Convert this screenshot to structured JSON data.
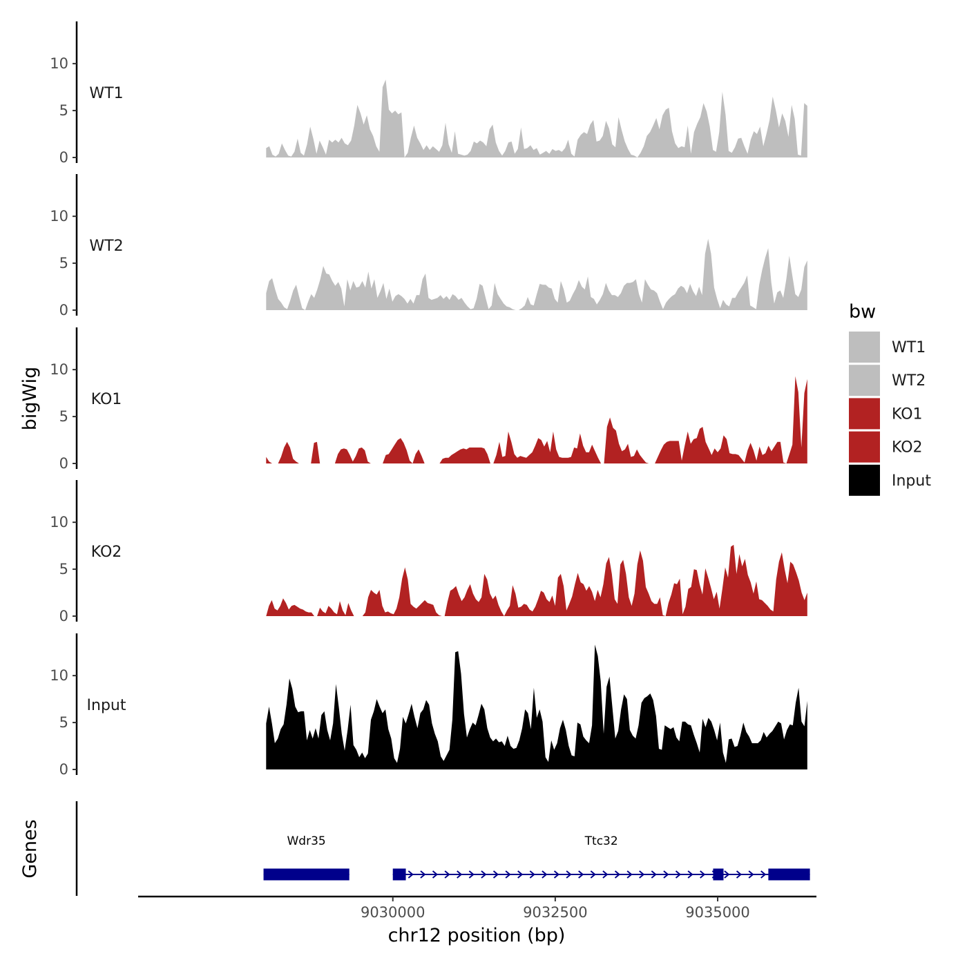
{
  "chart_data": {
    "type": "area",
    "xlabel": "chr12 position (bp)",
    "ylabel": "bigWig",
    "genes_label": "Genes",
    "xlim": [
      9026080,
      9036520
    ],
    "x_ticks": [
      9030000,
      9032500,
      9035000
    ],
    "x_tick_labels": [
      "9030000",
      "9032500",
      "9035000"
    ],
    "ylim": [
      0,
      14.5
    ],
    "y_ticks": [
      0,
      5,
      10
    ],
    "y_tick_labels": [
      "0",
      "5",
      "10"
    ],
    "x_range": [
      9028050,
      9036380
    ],
    "legend": {
      "title": "bw",
      "entries": [
        {
          "label": "WT1",
          "color": "#BEBEBE"
        },
        {
          "label": "WT2",
          "color": "#BEBEBE"
        },
        {
          "label": "KO1",
          "color": "#B22222"
        },
        {
          "label": "KO2",
          "color": "#B22222"
        },
        {
          "label": "Input",
          "color": "#000000"
        }
      ]
    },
    "series": [
      {
        "name": "WT1",
        "color": "#BEBEBE",
        "values": [
          1.0,
          1.2,
          0.3,
          0.1,
          0.4,
          1.5,
          0.8,
          0.2,
          0.1,
          0.6,
          2.0,
          0.5,
          0.2,
          1.4,
          3.3,
          2.0,
          0.4,
          1.8,
          1.1,
          0.3,
          1.9,
          1.6,
          1.9,
          1.6,
          2.1,
          1.5,
          1.3,
          1.8,
          3.4,
          5.6,
          4.7,
          3.5,
          4.5,
          3.0,
          2.3,
          1.2,
          0.6,
          7.5,
          8.3,
          5.1,
          4.7,
          5.0,
          4.6,
          4.8,
          0.0,
          0.5,
          2.1,
          3.4,
          2.1,
          1.5,
          0.8,
          1.3,
          0.8,
          1.2,
          0.9,
          0.6,
          1.3,
          3.7,
          1.4,
          0.5,
          2.8,
          0.4,
          0.3,
          0.2,
          0.3,
          0.7,
          1.7,
          1.5,
          1.8,
          1.6,
          1.2,
          3.0,
          3.5,
          1.6,
          0.7,
          0.2,
          0.7,
          1.6,
          1.7,
          0.4,
          0.9,
          3.2,
          0.9,
          1.0,
          1.3,
          0.8,
          1.0,
          0.3,
          0.5,
          0.7,
          0.4,
          0.9,
          0.7,
          0.8,
          0.6,
          1.0,
          1.9,
          0.4,
          0.1,
          1.9,
          2.4,
          2.7,
          2.5,
          3.5,
          4.0,
          1.7,
          1.8,
          2.3,
          3.9,
          3.1,
          1.4,
          1.1,
          4.3,
          2.9,
          1.7,
          0.9,
          0.3,
          0.2,
          0.0,
          0.5,
          1.2,
          2.3,
          2.7,
          3.4,
          4.2,
          3.0,
          4.5,
          5.1,
          5.3,
          2.8,
          1.5,
          1.0,
          1.2,
          1.1,
          3.4,
          0.4,
          2.7,
          3.6,
          4.3,
          5.8,
          4.9,
          3.3,
          0.8,
          0.6,
          2.7,
          7.0,
          4.6,
          0.7,
          0.5,
          1.1,
          2.0,
          2.1,
          1.2,
          0.4,
          1.9,
          2.8,
          2.5,
          3.3,
          1.2,
          2.5,
          4.0,
          6.5,
          5.0,
          3.2,
          4.7,
          3.9,
          2.2,
          5.6,
          4.1,
          0.3,
          0.2,
          5.8,
          5.5
        ]
      },
      {
        "name": "WT2",
        "color": "#BEBEBE",
        "values": [
          1.8,
          3.1,
          3.4,
          2.2,
          1.2,
          0.8,
          0.3,
          0.1,
          1.0,
          2.1,
          2.7,
          1.4,
          0.2,
          0.0,
          0.9,
          1.7,
          1.3,
          2.2,
          3.3,
          4.7,
          3.9,
          3.8,
          3.1,
          2.6,
          3.0,
          2.3,
          0.4,
          3.3,
          2.1,
          3.1,
          2.4,
          2.5,
          3.1,
          2.4,
          4.1,
          2.3,
          3.3,
          1.3,
          2.0,
          2.9,
          1.2,
          2.3,
          0.9,
          1.5,
          1.7,
          1.5,
          1.2,
          0.7,
          1.2,
          0.7,
          1.6,
          1.6,
          3.3,
          3.9,
          1.3,
          1.1,
          1.2,
          1.3,
          1.6,
          1.2,
          1.5,
          1.1,
          1.7,
          1.5,
          1.1,
          1.3,
          0.8,
          0.4,
          0.1,
          0.2,
          1.2,
          2.8,
          2.6,
          1.3,
          0.1,
          0.5,
          2.9,
          1.7,
          1.2,
          0.7,
          0.4,
          0.3,
          0.1,
          0.0,
          0.0,
          0.2,
          0.5,
          1.4,
          0.6,
          0.5,
          1.7,
          2.8,
          2.7,
          2.7,
          2.4,
          2.3,
          1.2,
          0.8,
          3.1,
          2.2,
          0.8,
          1.0,
          1.7,
          2.3,
          3.2,
          2.5,
          2.2,
          3.6,
          1.4,
          1.2,
          0.6,
          1.1,
          1.7,
          2.9,
          2.1,
          1.6,
          1.6,
          1.4,
          1.8,
          2.6,
          2.9,
          2.9,
          3.0,
          3.3,
          1.7,
          0.8,
          3.3,
          2.7,
          2.2,
          2.1,
          1.8,
          0.9,
          0.1,
          0.8,
          1.2,
          1.5,
          1.7,
          2.3,
          2.6,
          2.4,
          1.8,
          2.8,
          2.0,
          1.5,
          2.5,
          1.6,
          6.0,
          7.6,
          6.0,
          2.4,
          1.2,
          0.2,
          1.1,
          0.6,
          0.4,
          1.3,
          1.3,
          1.9,
          2.4,
          2.9,
          3.7,
          0.5,
          0.3,
          0.1,
          2.7,
          4.3,
          5.6,
          6.6,
          3.0,
          0.7,
          1.9,
          2.1,
          1.3,
          3.3,
          5.8,
          3.7,
          1.7,
          1.4,
          2.2,
          4.6,
          5.3
        ]
      },
      {
        "name": "KO1",
        "color": "#B22222",
        "values": [
          0.7,
          0.2,
          0.0,
          0.0,
          0.0,
          0.7,
          1.7,
          2.3,
          1.7,
          0.5,
          0.2,
          0.0,
          0.0,
          0.0,
          0.0,
          0.0,
          2.2,
          2.3,
          0.0,
          0.0,
          0.0,
          0.0,
          0.0,
          0.0,
          1.0,
          1.5,
          1.6,
          1.5,
          0.9,
          0.2,
          0.8,
          1.6,
          1.7,
          1.4,
          0.2,
          0.0,
          0.0,
          0.0,
          0.0,
          0.0,
          0.9,
          1.0,
          1.5,
          2.0,
          2.5,
          2.7,
          2.2,
          1.4,
          0.3,
          0.0,
          1.0,
          1.5,
          0.8,
          0.0,
          0.0,
          0.0,
          0.0,
          0.0,
          0.0,
          0.5,
          0.6,
          0.6,
          0.9,
          1.1,
          1.3,
          1.5,
          1.6,
          1.5,
          1.7,
          1.7,
          1.7,
          1.7,
          1.7,
          1.6,
          1.0,
          0.0,
          0.0,
          0.9,
          2.3,
          0.7,
          0.8,
          3.4,
          2.3,
          1.0,
          0.6,
          0.8,
          0.7,
          0.6,
          0.9,
          1.2,
          1.9,
          2.7,
          2.5,
          1.8,
          2.4,
          1.2,
          3.4,
          1.5,
          0.7,
          0.6,
          0.6,
          0.6,
          0.7,
          1.7,
          1.6,
          3.2,
          1.9,
          1.2,
          1.2,
          2.0,
          1.3,
          0.6,
          0.0,
          0.0,
          3.9,
          4.9,
          3.8,
          3.5,
          2.1,
          1.3,
          1.5,
          2.1,
          0.7,
          0.8,
          1.5,
          0.9,
          0.5,
          0.1,
          0.0,
          0.0,
          0.0,
          0.7,
          1.4,
          2.0,
          2.3,
          2.4,
          2.4,
          2.4,
          2.4,
          0.3,
          1.9,
          3.4,
          2.1,
          2.6,
          2.7,
          3.7,
          3.9,
          2.3,
          1.6,
          0.9,
          1.6,
          1.2,
          1.6,
          3.0,
          2.6,
          1.1,
          1.0,
          1.0,
          0.9,
          0.5,
          0.1,
          1.4,
          2.2,
          1.4,
          0.3,
          1.8,
          0.9,
          1.1,
          1.9,
          1.3,
          1.8,
          2.3,
          2.3,
          0.1,
          0.0,
          1.0,
          2.0,
          9.3,
          7.6,
          1.7,
          7.5,
          9.0
        ]
      },
      {
        "name": "KO2",
        "color": "#B22222",
        "values": [
          0.0,
          1.1,
          1.7,
          0.8,
          0.6,
          1.1,
          1.9,
          1.4,
          0.7,
          1.1,
          1.2,
          1.0,
          0.8,
          0.7,
          0.5,
          0.4,
          0.4,
          0.0,
          0.0,
          0.9,
          0.5,
          0.3,
          1.1,
          0.8,
          0.4,
          0.2,
          1.6,
          0.6,
          0.1,
          1.4,
          0.6,
          0.0,
          0.0,
          0.0,
          0.0,
          0.4,
          2.0,
          2.8,
          2.5,
          2.3,
          2.8,
          1.1,
          0.4,
          0.5,
          0.3,
          0.2,
          0.8,
          2.0,
          4.0,
          5.2,
          3.9,
          1.3,
          1.0,
          0.8,
          1.1,
          1.4,
          1.7,
          1.4,
          1.3,
          1.2,
          0.4,
          0.1,
          0.0,
          0.0,
          1.5,
          2.7,
          2.9,
          3.2,
          2.3,
          1.6,
          2.0,
          2.8,
          3.4,
          2.4,
          1.8,
          1.5,
          2.0,
          4.5,
          3.9,
          2.4,
          1.8,
          2.2,
          1.2,
          0.5,
          0.0,
          0.6,
          1.1,
          3.3,
          2.4,
          0.9,
          1.0,
          1.3,
          1.2,
          0.7,
          0.5,
          1.0,
          1.8,
          2.7,
          2.5,
          1.8,
          1.5,
          2.2,
          1.1,
          4.1,
          4.5,
          3.2,
          0.6,
          1.3,
          2.1,
          3.4,
          4.6,
          3.6,
          3.4,
          2.7,
          3.2,
          2.6,
          1.6,
          2.8,
          2.0,
          3.4,
          5.6,
          6.3,
          4.5,
          1.8,
          1.3,
          5.5,
          6.0,
          4.5,
          2.0,
          1.1,
          2.4,
          5.5,
          7.0,
          5.9,
          3.1,
          2.4,
          1.6,
          1.3,
          1.3,
          2.0,
          0.1,
          0.0,
          1.4,
          2.3,
          3.5,
          3.4,
          4.0,
          0.2,
          1.0,
          2.9,
          3.1,
          5.0,
          4.9,
          3.4,
          2.3,
          5.1,
          4.1,
          3.0,
          1.8,
          2.6,
          0.8,
          2.9,
          5.2,
          4.1,
          7.4,
          7.6,
          4.5,
          6.6,
          5.3,
          6.1,
          4.4,
          3.6,
          2.4,
          3.7,
          1.8,
          1.7,
          1.4,
          1.1,
          0.7,
          0.5,
          3.9,
          5.8,
          6.8,
          5.0,
          3.5,
          5.8,
          5.5,
          4.7,
          3.8,
          2.5,
          1.7,
          2.5
        ]
      },
      {
        "name": "Input",
        "color": "#000000",
        "values": [
          4.9,
          6.7,
          4.9,
          2.8,
          3.3,
          4.3,
          4.8,
          6.9,
          9.7,
          8.6,
          6.7,
          6.1,
          6.2,
          6.2,
          3.1,
          4.2,
          3.3,
          4.4,
          3.3,
          5.8,
          6.2,
          4.2,
          3.1,
          4.9,
          9.1,
          6.6,
          3.8,
          2.0,
          4.2,
          6.9,
          2.6,
          2.1,
          1.3,
          1.8,
          1.2,
          1.7,
          5.3,
          6.2,
          7.5,
          6.7,
          6.0,
          6.4,
          4.3,
          3.3,
          1.2,
          0.7,
          2.2,
          5.6,
          4.9,
          5.9,
          7.0,
          5.6,
          4.4,
          6.0,
          6.4,
          7.4,
          6.9,
          4.9,
          3.8,
          3.0,
          1.4,
          0.9,
          1.5,
          2.1,
          5.3,
          12.5,
          12.6,
          10.2,
          5.9,
          3.4,
          4.3,
          5.0,
          4.7,
          5.8,
          7.0,
          6.4,
          4.4,
          3.4,
          3.0,
          3.3,
          2.9,
          3.0,
          2.5,
          3.6,
          2.5,
          2.2,
          2.3,
          3.1,
          4.4,
          6.4,
          6.0,
          4.3,
          8.7,
          5.5,
          6.4,
          5.1,
          1.3,
          0.8,
          3.1,
          2.1,
          2.8,
          4.4,
          5.3,
          4.2,
          2.5,
          1.5,
          1.4,
          5.0,
          4.8,
          3.5,
          3.1,
          2.8,
          4.7,
          13.3,
          12.1,
          9.4,
          3.8,
          8.8,
          9.9,
          6.6,
          3.3,
          4.1,
          6.4,
          8.0,
          7.5,
          4.2,
          3.6,
          3.3,
          4.7,
          7.1,
          7.6,
          7.8,
          8.1,
          7.4,
          5.7,
          2.2,
          2.1,
          4.7,
          4.5,
          4.3,
          4.5,
          3.4,
          3.0,
          5.1,
          5.1,
          4.8,
          4.7,
          3.7,
          2.8,
          1.8,
          5.4,
          4.5,
          5.5,
          5.1,
          4.2,
          3.1,
          5.0,
          1.8,
          0.7,
          3.2,
          3.3,
          2.4,
          2.5,
          3.6,
          5.0,
          4.0,
          3.5,
          2.8,
          2.8,
          2.8,
          3.1,
          4.0,
          3.4,
          3.8,
          4.1,
          4.6,
          5.1,
          4.9,
          3.2,
          4.2,
          4.8,
          4.7,
          7.1,
          8.7,
          5.1,
          4.6,
          7.3
        ]
      }
    ],
    "genes": [
      {
        "name": "Wdr35",
        "start": 9028010,
        "end": 9029330,
        "strand": "+",
        "exons": [
          [
            9028010,
            9029330
          ]
        ]
      },
      {
        "name": "Ttc32",
        "start": 9030000,
        "end": 9036420,
        "strand": "+",
        "exons": [
          [
            9030000,
            9030200
          ],
          [
            9034930,
            9035090
          ],
          [
            9035780,
            9036420
          ]
        ]
      }
    ]
  }
}
